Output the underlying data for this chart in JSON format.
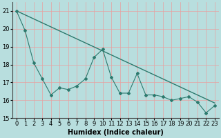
{
  "xlabel": "Humidex (Indice chaleur)",
  "x": [
    0,
    1,
    2,
    3,
    4,
    5,
    6,
    7,
    8,
    9,
    10,
    11,
    12,
    13,
    14,
    15,
    16,
    17,
    18,
    19,
    20,
    21,
    22,
    23
  ],
  "y_data": [
    21.0,
    19.9,
    18.1,
    17.2,
    16.3,
    16.7,
    16.6,
    16.8,
    17.2,
    18.4,
    18.85,
    17.3,
    16.4,
    16.4,
    17.5,
    16.3,
    16.3,
    16.2,
    16.0,
    16.1,
    16.2,
    15.9,
    15.3,
    15.7
  ],
  "trend_start": 21.0,
  "trend_end": 15.85,
  "line_color": "#2d7a6e",
  "bg_color": "#b8dede",
  "grid_color_v": "#e8a0a0",
  "grid_color_h": "#e8a0a0",
  "ylim": [
    15,
    21.5
  ],
  "yticks": [
    15,
    16,
    17,
    18,
    19,
    20,
    21
  ],
  "xlim": [
    -0.5,
    23.5
  ],
  "tick_fontsize": 6,
  "xlabel_fontsize": 7
}
